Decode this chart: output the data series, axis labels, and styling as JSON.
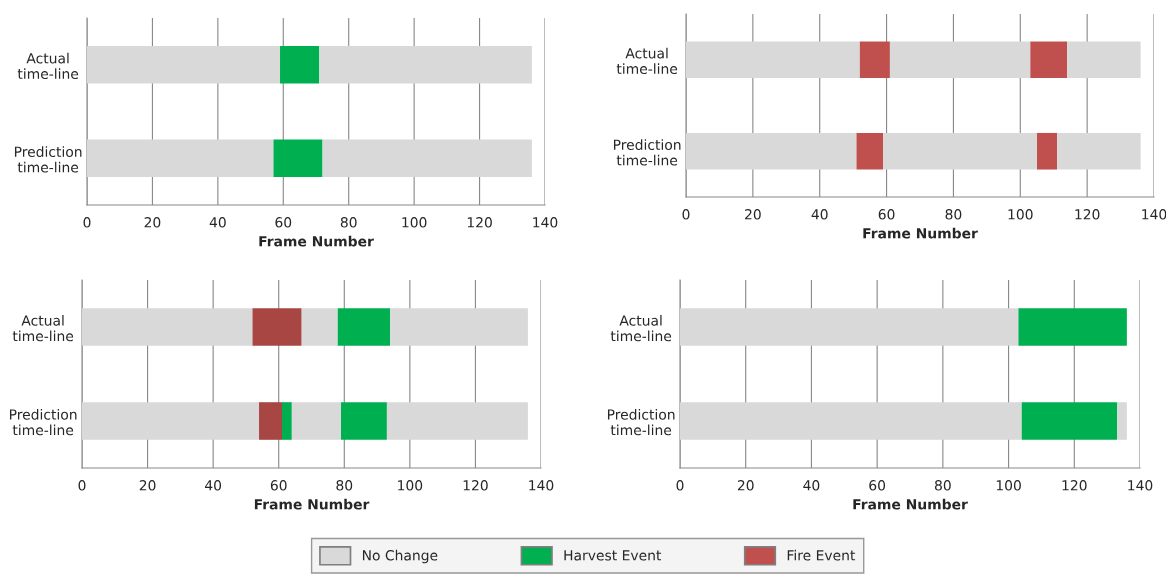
{
  "chart_data": [
    {
      "type": "bar",
      "orientation": "horizontal",
      "stacked": true,
      "categories": [
        "Actual\ntime-line",
        "Prediction\ntime-line"
      ],
      "xlabel": "Frame Number",
      "xlim": [
        0,
        140
      ],
      "xticks": [
        0,
        20,
        40,
        60,
        80,
        100,
        120,
        140
      ],
      "grid": "x",
      "legend": "bottom",
      "series": [
        {
          "name": "No Change",
          "color": "#d9d9d9",
          "values": [
            59,
            57
          ]
        },
        {
          "name": "Harvest Event",
          "color": "#00b050",
          "values": [
            12,
            15
          ]
        },
        {
          "color": "#d9d9d9",
          "values": [
            65,
            64
          ]
        }
      ]
    },
    {
      "type": "bar",
      "orientation": "horizontal",
      "stacked": true,
      "categories": [
        "Actual\ntime-line",
        "Prediction\ntime-line"
      ],
      "xlabel": "Frame Number",
      "xlim": [
        0,
        140
      ],
      "xticks": [
        0,
        20,
        40,
        60,
        80,
        100,
        120,
        140
      ],
      "grid": "x",
      "series": [
        {
          "color": "#d9d9d9",
          "values": [
            52,
            51
          ]
        },
        {
          "name": "Fire Event",
          "color": "#c0504d",
          "values": [
            9,
            8
          ]
        },
        {
          "color": "#d9d9d9",
          "values": [
            42,
            46
          ]
        },
        {
          "color": "#c0504d",
          "values": [
            11,
            6
          ]
        },
        {
          "color": "#d9d9d9",
          "values": [
            22,
            25
          ]
        }
      ]
    },
    {
      "type": "bar",
      "orientation": "horizontal",
      "stacked": true,
      "categories": [
        "Actual\ntime-line",
        "Prediction\ntime-line"
      ],
      "xlabel": "Frame Number",
      "xlim": [
        0,
        140
      ],
      "xticks": [
        0,
        20,
        40,
        60,
        80,
        100,
        120,
        140
      ],
      "grid": "x",
      "series": [
        {
          "color": "#d9d9d9",
          "values": [
            52,
            54
          ]
        },
        {
          "color": "#a84644",
          "values": [
            15,
            7
          ]
        },
        {
          "color": "#d9d9d9",
          "values": [
            11,
            null
          ]
        },
        {
          "color": "#00b050",
          "values": [
            null,
            3
          ]
        },
        {
          "color": "#d9d9d9",
          "values": [
            null,
            15
          ]
        },
        {
          "color": "#00b050",
          "values": [
            16,
            14
          ]
        },
        {
          "color": "#d9d9d9",
          "values": [
            42,
            43
          ]
        }
      ]
    },
    {
      "type": "bar",
      "orientation": "horizontal",
      "stacked": true,
      "categories": [
        "Actual\ntime-line",
        "Prediction\ntime-line"
      ],
      "xlabel": "Frame Number",
      "xlim": [
        0,
        140
      ],
      "xticks": [
        0,
        20,
        40,
        60,
        80,
        100,
        120,
        140
      ],
      "grid": "x",
      "series": [
        {
          "color": "#d9d9d9",
          "values": [
            103,
            104
          ]
        },
        {
          "color": "#00b050",
          "values": [
            33,
            29
          ]
        },
        {
          "color": "#d9d9d9",
          "values": [
            null,
            3
          ]
        }
      ]
    }
  ]
}
